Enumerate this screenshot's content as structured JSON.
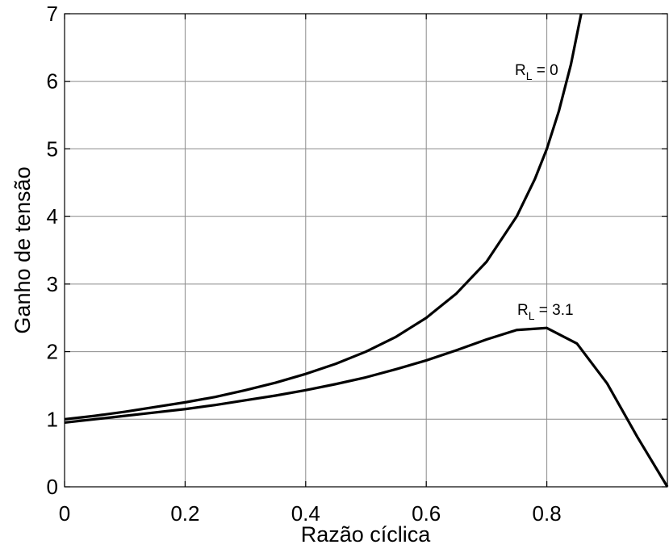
{
  "chart_data": {
    "type": "line",
    "title": "",
    "xlabel": "Razão cíclica",
    "ylabel": "Ganho de tensão",
    "xlim": [
      0,
      1
    ],
    "ylim": [
      0,
      7
    ],
    "grid": true,
    "x_ticks": [
      0,
      0.2,
      0.4,
      0.6,
      0.8
    ],
    "x_tick_labels": [
      "0",
      "0.2",
      "0.4",
      "0.6",
      "0.8"
    ],
    "y_ticks": [
      0,
      1,
      2,
      3,
      4,
      5,
      6,
      7
    ],
    "y_tick_labels": [
      "0",
      "1",
      "2",
      "3",
      "4",
      "5",
      "6",
      "7"
    ],
    "series": [
      {
        "label_main": "R",
        "label_sub": "L",
        "label_rest": " = 0",
        "x": [
          0,
          0.05,
          0.1,
          0.15,
          0.2,
          0.25,
          0.3,
          0.35,
          0.4,
          0.45,
          0.5,
          0.55,
          0.6,
          0.65,
          0.7,
          0.75,
          0.78,
          0.8,
          0.82,
          0.84,
          0.857
        ],
        "y": [
          1.0,
          1.05,
          1.11,
          1.18,
          1.25,
          1.33,
          1.43,
          1.54,
          1.67,
          1.82,
          2.0,
          2.22,
          2.5,
          2.86,
          3.33,
          4.0,
          4.55,
          5.0,
          5.56,
          6.25,
          7.0
        ]
      },
      {
        "label_main": "R",
        "label_sub": "L",
        "label_rest": " = 3.1",
        "x": [
          0,
          0.05,
          0.1,
          0.15,
          0.2,
          0.25,
          0.3,
          0.35,
          0.4,
          0.45,
          0.5,
          0.55,
          0.6,
          0.65,
          0.7,
          0.75,
          0.8,
          0.85,
          0.9,
          0.95,
          1.0
        ],
        "y": [
          0.95,
          1.0,
          1.05,
          1.1,
          1.15,
          1.21,
          1.28,
          1.35,
          1.43,
          1.52,
          1.62,
          1.74,
          1.87,
          2.02,
          2.18,
          2.32,
          2.35,
          2.12,
          1.53,
          0.74,
          0.0
        ]
      }
    ]
  }
}
